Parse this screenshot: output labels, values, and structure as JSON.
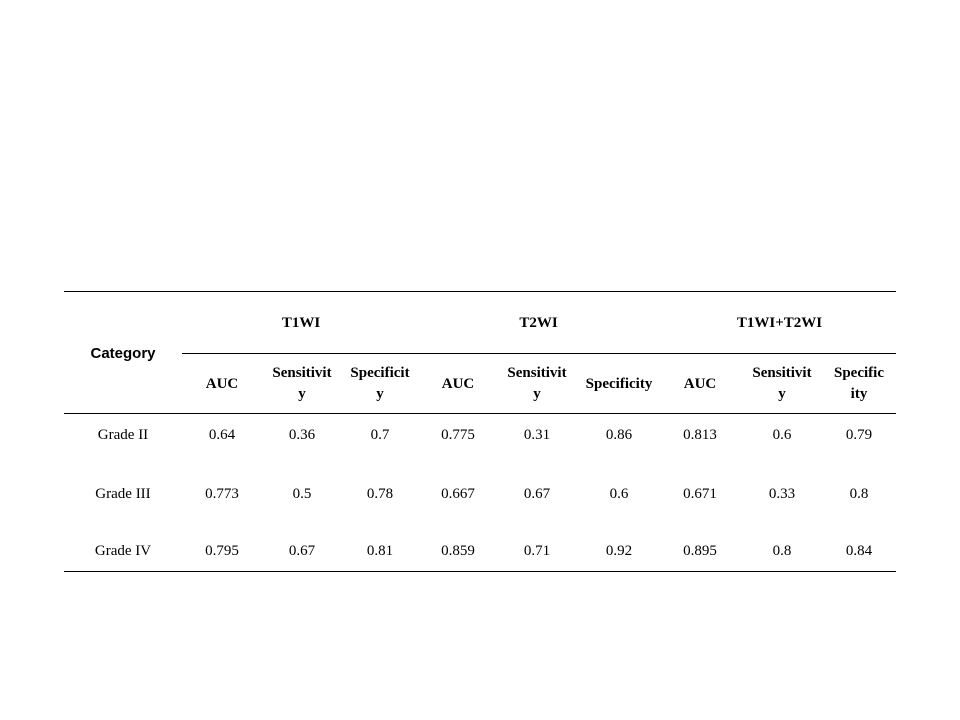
{
  "table": {
    "row_header": "Category",
    "groups": [
      "T1WI",
      "T2WI",
      "T1WI+T2WI"
    ],
    "columns": [
      "AUC",
      "Sensitivity",
      "Specificity",
      "AUC",
      "Sensitivity",
      "Specificity",
      "AUC",
      "Sensitivity",
      "Specificity"
    ],
    "rows": [
      {
        "label": "Grade II",
        "values": [
          "0.64",
          "0.36",
          "0.7",
          "0.775",
          "0.31",
          "0.86",
          "0.813",
          "0.6",
          "0.79"
        ]
      },
      {
        "label": "Grade III",
        "values": [
          "0.773",
          "0.5",
          "0.78",
          "0.667",
          "0.67",
          "0.6",
          "0.671",
          "0.33",
          "0.8"
        ]
      },
      {
        "label": "Grade IV",
        "values": [
          "0.795",
          "0.67",
          "0.81",
          "0.859",
          "0.71",
          "0.92",
          "0.895",
          "0.8",
          "0.84"
        ]
      }
    ]
  }
}
